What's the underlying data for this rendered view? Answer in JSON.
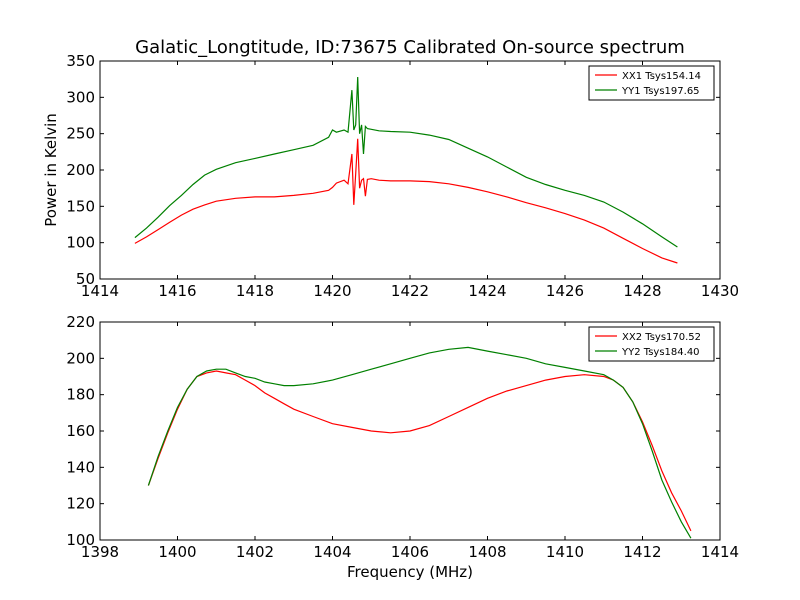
{
  "figure": {
    "title": "Galatic_Longtitude, ID:73675 Calibrated On-source spectrum",
    "xlabel": "Frequency (MHz)"
  },
  "chart_data": [
    {
      "type": "line",
      "title": "Galatic_Longtitude, ID:73675 Calibrated On-source spectrum",
      "xlabel": "",
      "ylabel": "Power in Kelvin",
      "xlim": [
        1414,
        1430
      ],
      "ylim": [
        50,
        350
      ],
      "xticks": [
        1414,
        1416,
        1418,
        1420,
        1422,
        1424,
        1426,
        1428,
        1430
      ],
      "yticks": [
        50,
        100,
        150,
        200,
        250,
        300,
        350
      ],
      "grid": false,
      "legend": "top-right",
      "series": [
        {
          "name": "XX1 Tsys154.14",
          "color": "#ff0000",
          "x": [
            1414.9,
            1415.2,
            1415.5,
            1415.8,
            1416.1,
            1416.4,
            1416.7,
            1417.0,
            1417.5,
            1418.0,
            1418.5,
            1419.0,
            1419.5,
            1419.9,
            1420.0,
            1420.1,
            1420.3,
            1420.4,
            1420.5,
            1420.55,
            1420.6,
            1420.65,
            1420.7,
            1420.75,
            1420.8,
            1420.85,
            1420.9,
            1421.0,
            1421.2,
            1421.5,
            1422.0,
            1422.5,
            1423.0,
            1423.5,
            1424.0,
            1424.5,
            1425.0,
            1425.5,
            1426.0,
            1426.5,
            1427.0,
            1427.5,
            1428.0,
            1428.5,
            1428.9
          ],
          "y": [
            99,
            108,
            118,
            128,
            138,
            146,
            152,
            157,
            161,
            163,
            163,
            165,
            168,
            172,
            176,
            182,
            186,
            181,
            222,
            152,
            195,
            243,
            175,
            186,
            188,
            164,
            187,
            188,
            186,
            185,
            185,
            184,
            181,
            176,
            170,
            163,
            155,
            148,
            140,
            131,
            120,
            106,
            92,
            79,
            72
          ]
        },
        {
          "name": "YY1 Tsys197.65",
          "color": "#008000",
          "x": [
            1414.9,
            1415.2,
            1415.5,
            1415.8,
            1416.1,
            1416.4,
            1416.7,
            1417.0,
            1417.5,
            1418.0,
            1418.5,
            1419.0,
            1419.5,
            1419.9,
            1420.0,
            1420.1,
            1420.3,
            1420.4,
            1420.5,
            1420.55,
            1420.6,
            1420.65,
            1420.7,
            1420.75,
            1420.8,
            1420.85,
            1420.9,
            1421.0,
            1421.2,
            1421.5,
            1422.0,
            1422.5,
            1423.0,
            1423.5,
            1424.0,
            1424.5,
            1425.0,
            1425.5,
            1426.0,
            1426.5,
            1427.0,
            1427.5,
            1428.0,
            1428.5,
            1428.9
          ],
          "y": [
            107,
            120,
            135,
            151,
            165,
            180,
            193,
            201,
            210,
            216,
            222,
            228,
            234,
            245,
            255,
            252,
            255,
            252,
            310,
            255,
            262,
            328,
            250,
            262,
            222,
            260,
            257,
            256,
            254,
            253,
            252,
            248,
            242,
            230,
            218,
            204,
            190,
            180,
            172,
            165,
            156,
            142,
            126,
            108,
            94
          ]
        }
      ]
    },
    {
      "type": "line",
      "title": "",
      "xlabel": "Frequency (MHz)",
      "ylabel": "",
      "xlim": [
        1398,
        1414
      ],
      "ylim": [
        100,
        220
      ],
      "xticks": [
        1398,
        1400,
        1402,
        1404,
        1406,
        1408,
        1410,
        1412,
        1414
      ],
      "yticks": [
        100,
        120,
        140,
        160,
        180,
        200,
        220
      ],
      "grid": false,
      "legend": "top-right",
      "series": [
        {
          "name": "XX2 Tsys170.52",
          "color": "#ff0000",
          "x": [
            1399.25,
            1399.5,
            1399.75,
            1400.0,
            1400.25,
            1400.5,
            1400.75,
            1401.0,
            1401.25,
            1401.5,
            1401.75,
            1402.0,
            1402.25,
            1402.5,
            1402.75,
            1403.0,
            1403.5,
            1404.0,
            1404.5,
            1405.0,
            1405.5,
            1406.0,
            1406.5,
            1407.0,
            1407.5,
            1408.0,
            1408.5,
            1409.0,
            1409.5,
            1410.0,
            1410.5,
            1411.0,
            1411.25,
            1411.5,
            1411.75,
            1412.0,
            1412.25,
            1412.5,
            1412.75,
            1413.0,
            1413.25
          ],
          "y": [
            130,
            145,
            159,
            172,
            183,
            190,
            192,
            193,
            192,
            191,
            188,
            185,
            181,
            178,
            175,
            172,
            168,
            164,
            162,
            160,
            159,
            160,
            163,
            168,
            173,
            178,
            182,
            185,
            188,
            190,
            191,
            190,
            188,
            184,
            176,
            165,
            152,
            138,
            126,
            116,
            105
          ]
        },
        {
          "name": "YY2 Tsys184.40",
          "color": "#008000",
          "x": [
            1399.25,
            1399.5,
            1399.75,
            1400.0,
            1400.25,
            1400.5,
            1400.75,
            1401.0,
            1401.25,
            1401.5,
            1401.75,
            1402.0,
            1402.25,
            1402.5,
            1402.75,
            1403.0,
            1403.5,
            1404.0,
            1404.5,
            1405.0,
            1405.5,
            1406.0,
            1406.5,
            1407.0,
            1407.5,
            1408.0,
            1408.5,
            1409.0,
            1409.5,
            1410.0,
            1410.5,
            1411.0,
            1411.25,
            1411.5,
            1411.75,
            1412.0,
            1412.25,
            1412.5,
            1412.75,
            1413.0,
            1413.25
          ],
          "y": [
            130,
            146,
            160,
            173,
            183,
            190,
            193,
            194,
            194,
            192,
            190,
            189,
            187,
            186,
            185,
            185,
            186,
            188,
            191,
            194,
            197,
            200,
            203,
            205,
            206,
            204,
            202,
            200,
            197,
            195,
            193,
            191,
            188,
            184,
            176,
            164,
            149,
            133,
            121,
            110,
            101
          ]
        }
      ]
    }
  ]
}
